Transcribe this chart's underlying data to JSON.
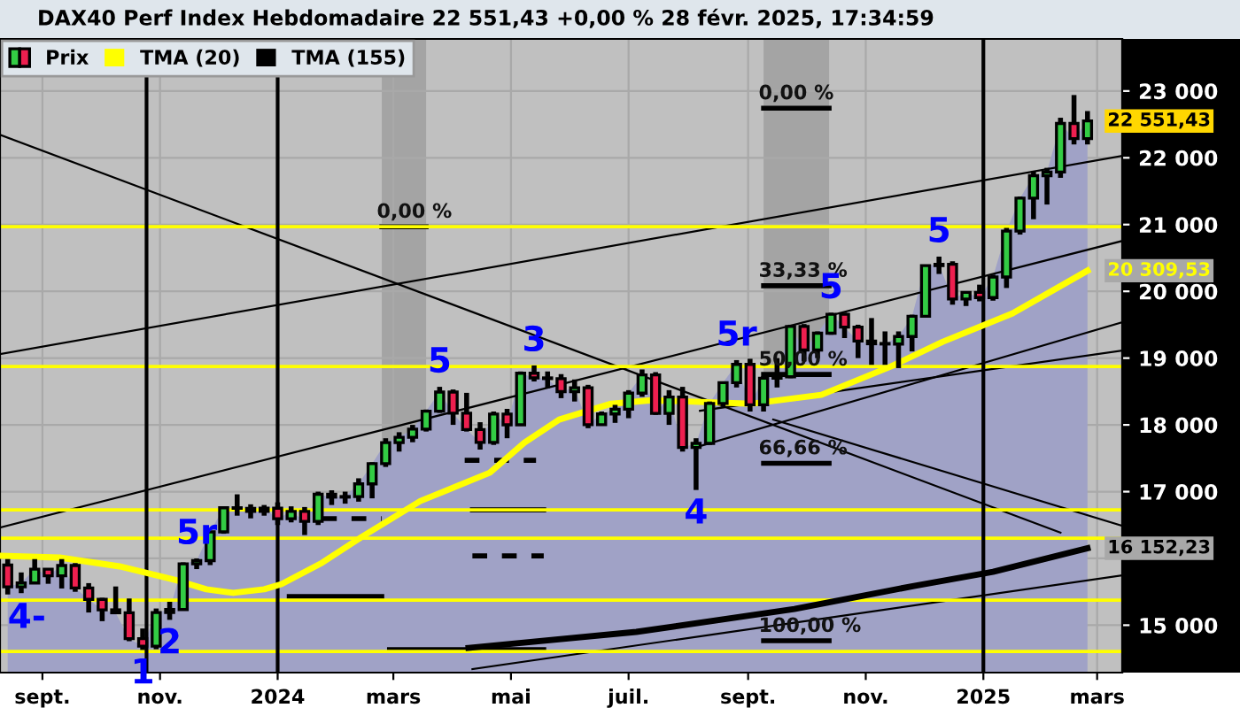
{
  "chart_data": {
    "type": "candlestick",
    "title": "DAX40 Perf Index Hebdomadaire 22 551,43 +0,00 % 28 févr. 2025, 17:34:59",
    "x": [
      "2023-08-14",
      "2023-08-21",
      "2023-08-28",
      "2023-09-04",
      "2023-09-11",
      "2023-09-18",
      "2023-09-25",
      "2023-10-02",
      "2023-10-09",
      "2023-10-16",
      "2023-10-23",
      "2023-10-30",
      "2023-11-06",
      "2023-11-13",
      "2023-11-20",
      "2023-11-27",
      "2023-12-04",
      "2023-12-11",
      "2023-12-18",
      "2023-12-25",
      "2024-01-01",
      "2024-01-08",
      "2024-01-15",
      "2024-01-22",
      "2024-01-29",
      "2024-02-05",
      "2024-02-12",
      "2024-02-19",
      "2024-02-26",
      "2024-03-04",
      "2024-03-11",
      "2024-03-18",
      "2024-03-25",
      "2024-04-01",
      "2024-04-08",
      "2024-04-15",
      "2024-04-22",
      "2024-04-29",
      "2024-05-06",
      "2024-05-13",
      "2024-05-20",
      "2024-05-27",
      "2024-06-03",
      "2024-06-10",
      "2024-06-17",
      "2024-06-24",
      "2024-07-01",
      "2024-07-08",
      "2024-07-15",
      "2024-07-22",
      "2024-07-29",
      "2024-08-05",
      "2024-08-12",
      "2024-08-19",
      "2024-08-26",
      "2024-09-02",
      "2024-09-09",
      "2024-09-16",
      "2024-09-23",
      "2024-09-30",
      "2024-10-07",
      "2024-10-14",
      "2024-10-21",
      "2024-10-28",
      "2024-11-04",
      "2024-11-11",
      "2024-11-18",
      "2024-11-25",
      "2024-12-02",
      "2024-12-09",
      "2024-12-16",
      "2024-12-23",
      "2024-12-30",
      "2025-01-06",
      "2025-01-13",
      "2025-01-20",
      "2025-01-27",
      "2025-02-03",
      "2025-02-10",
      "2025-02-17",
      "2025-02-24"
    ],
    "series": [
      {
        "type": "area",
        "color": "#a0a2c6",
        "values": [
          15575,
          15632,
          15840,
          15740,
          15894,
          15557,
          15387,
          15230,
          15186,
          14798,
          14687,
          15189,
          15234,
          15919,
          15967,
          16397,
          16759,
          16751,
          16706,
          16752,
          16594,
          16704,
          16555,
          16961,
          16918,
          16927,
          17117,
          17419,
          17735,
          17815,
          17936,
          18206,
          18492,
          18175,
          17930,
          17737,
          18161,
          18001,
          18773,
          18704,
          18693,
          18498,
          18557,
          18002,
          18164,
          18235,
          18475,
          18748,
          18171,
          18417,
          17661,
          17723,
          18322,
          18633,
          18906,
          18302,
          18699,
          18720,
          19474,
          19121,
          19373,
          19657,
          19464,
          19255,
          19215,
          19211,
          19323,
          19626,
          20385,
          20405,
          19885,
          19984,
          19906,
          20215,
          20903,
          21395,
          21732,
          21787,
          22514,
          22287,
          22551
        ]
      },
      {
        "type": "line",
        "color": "#000000",
        "x": [
          "2023-08-10",
          "2025-03-14"
        ],
        "values": [
          19060,
          22030
        ]
      },
      {
        "type": "line",
        "color": "#000000",
        "x": [
          "2023-08-10",
          "2025-02-10"
        ],
        "values": [
          22345,
          16385
        ]
      },
      {
        "type": "line",
        "color": "#000000",
        "x": [
          "2024-09-14",
          "2025-03-14"
        ],
        "values": [
          18079,
          16489
        ]
      },
      {
        "type": "line",
        "color": "#000000",
        "x": [
          "2023-08-10",
          "2025-03-14"
        ],
        "values": [
          16462,
          20755
        ]
      },
      {
        "type": "line",
        "color": "#000000",
        "x": [
          "2024-04-11",
          "2025-03-14"
        ],
        "values": [
          14342,
          15747
        ]
      },
      {
        "type": "line",
        "color": "#000000",
        "x": [
          "2024-08-07",
          "2025-03-14"
        ],
        "values": [
          17681,
          19536
        ]
      },
      {
        "type": "line",
        "color": "#000000",
        "x": [
          "2024-08-07",
          "2025-03-14"
        ],
        "values": [
          18211,
          19112
        ]
      },
      {
        "type": "line",
        "color": "#000000",
        "x": [
          "2024-02-24",
          "2024-03-18"
        ],
        "values": [
          20968,
          20968
        ]
      },
      {
        "type": "line",
        "color": "#000000",
        "x": [
          "2024-09-09",
          "2024-10-13"
        ],
        "values": [
          22743,
          22743
        ]
      },
      {
        "type": "line",
        "color": "#000000",
        "x": [
          "2024-09-09",
          "2024-10-13"
        ],
        "values": [
          20084,
          20084
        ]
      },
      {
        "type": "line",
        "color": "#000000",
        "x": [
          "2024-09-09",
          "2024-10-13"
        ],
        "values": [
          18755,
          18755
        ]
      },
      {
        "type": "line",
        "color": "#000000",
        "x": [
          "2024-09-09",
          "2024-10-13"
        ],
        "values": [
          17425,
          17425
        ]
      },
      {
        "type": "line",
        "color": "#000000",
        "x": [
          "2024-09-09",
          "2024-10-13"
        ],
        "values": [
          14766,
          14766
        ]
      },
      {
        "type": "line",
        "color": "#000000",
        "x": [
          "2024-01-07",
          "2024-02-24"
        ],
        "values": [
          15429,
          15429
        ]
      },
      {
        "type": "line",
        "color": "#000000",
        "x": [
          "2024-04-11",
          "2024-05-18"
        ],
        "values": [
          16727,
          16727
        ]
      },
      {
        "type": "line",
        "color": "#000000",
        "x": [
          "2024-02-28",
          "2024-05-18"
        ],
        "values": [
          14634,
          14634
        ]
      },
      {
        "type": "line",
        "color": "#000000",
        "line_style": "dashed",
        "x": [
          "2024-04-11",
          "2024-05-18"
        ],
        "values": [
          16038,
          16038
        ]
      },
      {
        "type": "line",
        "color": "#000000",
        "line_style": "dashed",
        "x": [
          "2024-04-07",
          "2024-05-14"
        ],
        "values": [
          17469,
          17469
        ]
      },
      {
        "type": "line",
        "color": "#000000",
        "line_style": "dashed",
        "x": [
          "2024-01-24",
          "2024-02-24"
        ],
        "values": [
          16595,
          16595
        ]
      },
      {
        "name": "Prix",
        "value_labels": [
          null,
          null,
          null,
          null,
          null,
          null,
          null,
          null,
          null,
          null,
          null,
          null,
          null,
          null,
          null,
          null,
          null,
          null,
          null,
          null,
          null,
          null,
          null,
          null,
          null,
          null,
          null,
          null,
          null,
          null,
          null,
          null,
          null,
          null,
          null,
          null,
          null,
          null,
          null,
          null,
          null,
          null,
          null,
          null,
          null,
          null,
          null,
          null,
          null,
          null,
          null,
          null,
          null,
          null,
          null,
          null,
          null,
          null,
          null,
          null,
          null,
          null,
          null,
          null,
          null,
          null,
          null,
          null,
          null,
          null,
          null,
          null,
          null,
          null,
          null,
          null,
          null,
          null,
          null,
          null,
          "22 551,43"
        ],
        "colors": [
          "#ee1f4f",
          "#33cc44",
          "#33cc44",
          "#ee1f4f",
          "#33cc44",
          "#ee1f4f",
          "#ee1f4f",
          "#ee1f4f",
          "#ee1f4f",
          "#ee1f4f",
          "#ee1f4f",
          "#33cc44",
          "#33cc44",
          "#33cc44",
          "#33cc44",
          "#33cc44",
          "#33cc44",
          "#ee1f4f",
          "#ee1f4f",
          "#33cc44",
          "#ee1f4f",
          "#33cc44",
          "#ee1f4f",
          "#33cc44",
          "#ee1f4f",
          "#33cc44",
          "#33cc44",
          "#33cc44",
          "#33cc44",
          "#33cc44",
          "#33cc44",
          "#33cc44",
          "#33cc44",
          "#ee1f4f",
          "#ee1f4f",
          "#ee1f4f",
          "#33cc44",
          "#ee1f4f",
          "#33cc44",
          "#ee1f4f",
          "#ee1f4f",
          "#ee1f4f",
          "#33cc44",
          "#ee1f4f",
          "#33cc44",
          "#33cc44",
          "#33cc44",
          "#33cc44",
          "#ee1f4f",
          "#33cc44",
          "#ee1f4f",
          "#33cc44",
          "#33cc44",
          "#33cc44",
          "#33cc44",
          "#ee1f4f",
          "#33cc44",
          "#33cc44",
          "#33cc44",
          "#ee1f4f",
          "#33cc44",
          "#33cc44",
          "#ee1f4f",
          "#ee1f4f",
          "#ee1f4f",
          "#ee1f4f",
          "#33cc44",
          "#33cc44",
          "#33cc44",
          "#33cc44",
          "#ee1f4f",
          "#33cc44",
          "#ee1f4f",
          "#33cc44",
          "#33cc44",
          "#33cc44",
          "#33cc44",
          "#33cc44",
          "#33cc44",
          "#ee1f4f",
          "#33cc44"
        ],
        "ohlc": [
          [
            15900,
            15990,
            15460,
            15575
          ],
          [
            15575,
            15790,
            15480,
            15632
          ],
          [
            15632,
            15990,
            15620,
            15840
          ],
          [
            15840,
            15850,
            15620,
            15740
          ],
          [
            15740,
            15990,
            15550,
            15894
          ],
          [
            15894,
            15930,
            15500,
            15557
          ],
          [
            15557,
            15630,
            15190,
            15387
          ],
          [
            15387,
            15410,
            15060,
            15230
          ],
          [
            15230,
            15580,
            15180,
            15186
          ],
          [
            15186,
            15400,
            14760,
            14798
          ],
          [
            14798,
            14950,
            14630,
            14687
          ],
          [
            14687,
            15250,
            14640,
            15189
          ],
          [
            15189,
            15350,
            15080,
            15234
          ],
          [
            15234,
            15940,
            15230,
            15919
          ],
          [
            15919,
            16000,
            15840,
            15967
          ],
          [
            15967,
            16410,
            15900,
            16397
          ],
          [
            16397,
            16770,
            16370,
            16759
          ],
          [
            16759,
            16960,
            16640,
            16751
          ],
          [
            16751,
            16810,
            16600,
            16706
          ],
          [
            16706,
            16800,
            16640,
            16752
          ],
          [
            16752,
            16840,
            16500,
            16594
          ],
          [
            16594,
            16780,
            16540,
            16704
          ],
          [
            16704,
            16770,
            16350,
            16555
          ],
          [
            16555,
            17000,
            16500,
            16961
          ],
          [
            16961,
            17020,
            16800,
            16918
          ],
          [
            16918,
            17000,
            16820,
            16927
          ],
          [
            16927,
            17200,
            16850,
            17117
          ],
          [
            17117,
            17440,
            16900,
            17419
          ],
          [
            17419,
            17800,
            17370,
            17735
          ],
          [
            17735,
            17890,
            17600,
            17815
          ],
          [
            17815,
            18000,
            17740,
            17936
          ],
          [
            17936,
            18230,
            17900,
            18206
          ],
          [
            18206,
            18570,
            18180,
            18492
          ],
          [
            18492,
            18530,
            18000,
            18175
          ],
          [
            18175,
            18480,
            17900,
            17930
          ],
          [
            17930,
            18040,
            17630,
            17737
          ],
          [
            17737,
            18200,
            17700,
            18161
          ],
          [
            18161,
            18240,
            17800,
            18001
          ],
          [
            18001,
            18800,
            17990,
            18773
          ],
          [
            18773,
            18890,
            18650,
            18704
          ],
          [
            18704,
            18800,
            18550,
            18693
          ],
          [
            18693,
            18760,
            18400,
            18498
          ],
          [
            18498,
            18680,
            18350,
            18557
          ],
          [
            18557,
            18600,
            17950,
            18002
          ],
          [
            18002,
            18200,
            17990,
            18164
          ],
          [
            18164,
            18300,
            18030,
            18235
          ],
          [
            18235,
            18520,
            18100,
            18475
          ],
          [
            18475,
            18830,
            18420,
            18748
          ],
          [
            18748,
            18790,
            18150,
            18171
          ],
          [
            18171,
            18520,
            18000,
            18417
          ],
          [
            18417,
            18570,
            17600,
            17661
          ],
          [
            17661,
            17800,
            17025,
            17723
          ],
          [
            17723,
            18350,
            17700,
            18322
          ],
          [
            18322,
            18640,
            18270,
            18633
          ],
          [
            18633,
            18970,
            18560,
            18906
          ],
          [
            18906,
            18990,
            18200,
            18302
          ],
          [
            18302,
            18730,
            18200,
            18699
          ],
          [
            18699,
            19000,
            18560,
            18720
          ],
          [
            18720,
            19500,
            18700,
            19474
          ],
          [
            19474,
            19510,
            18950,
            19121
          ],
          [
            19121,
            19400,
            19000,
            19373
          ],
          [
            19373,
            19680,
            19350,
            19657
          ],
          [
            19657,
            19680,
            19300,
            19464
          ],
          [
            19464,
            19500,
            19000,
            19255
          ],
          [
            19255,
            19600,
            18900,
            19215
          ],
          [
            19215,
            19400,
            18900,
            19211
          ],
          [
            19211,
            19400,
            18850,
            19323
          ],
          [
            19323,
            19650,
            19100,
            19626
          ],
          [
            19626,
            20400,
            19620,
            20385
          ],
          [
            20385,
            20520,
            20260,
            20405
          ],
          [
            20405,
            20450,
            19800,
            19885
          ],
          [
            19885,
            19990,
            19780,
            19984
          ],
          [
            19984,
            20100,
            19850,
            19906
          ],
          [
            19906,
            20250,
            19860,
            20215
          ],
          [
            20215,
            20950,
            20050,
            20903
          ],
          [
            20903,
            21420,
            20850,
            21395
          ],
          [
            21395,
            21800,
            21080,
            21732
          ],
          [
            21732,
            21850,
            21300,
            21787
          ],
          [
            21787,
            22600,
            21700,
            22514
          ],
          [
            22514,
            22940,
            22200,
            22287
          ],
          [
            22287,
            22700,
            22200,
            22551.43
          ]
        ]
      },
      {
        "name": "TMA (20)",
        "type": "line",
        "color": "#ffff00",
        "x": [
          "2023-08-10",
          "2023-09-10",
          "2023-10-11",
          "2023-11-10",
          "2023-11-25",
          "2023-12-09",
          "2023-12-25",
          "2024-01-03",
          "2024-01-24",
          "2024-02-14",
          "2024-03-15",
          "2024-04-20",
          "2024-05-08",
          "2024-05-26",
          "2024-06-22",
          "2024-07-13",
          "2024-08-07",
          "2024-09-03",
          "2024-10-09",
          "2024-11-14",
          "2024-12-11",
          "2025-01-16",
          "2025-02-24"
        ],
        "values": [
          16040,
          16013,
          15881,
          15669,
          15537,
          15484,
          15537,
          15616,
          15934,
          16330,
          16860,
          17284,
          17734,
          18079,
          18317,
          18370,
          18344,
          18317,
          18450,
          18874,
          19245,
          19669,
          20309.53
        ],
        "value_labels": [
          null,
          null,
          null,
          null,
          null,
          null,
          null,
          null,
          null,
          null,
          null,
          null,
          null,
          null,
          null,
          null,
          null,
          null,
          null,
          null,
          null,
          null,
          "20 309,53"
        ]
      },
      {
        "name": "TMA (155)",
        "type": "line",
        "color": "#000000",
        "x": [
          "2024-04-09",
          "2024-07-05",
          "2024-09-25",
          "2024-11-26",
          "2025-01-06",
          "2025-02-24"
        ],
        "values": [
          14660,
          14899,
          15243,
          15588,
          15800,
          16152.23
        ],
        "value_labels": [
          null,
          null,
          null,
          null,
          null,
          "16 152,23"
        ]
      }
    ],
    "annotations": [
      {
        "text": "0,00 %",
        "x": "2024-02-24",
        "y": 20968
      },
      {
        "text": "0,00 %",
        "x": "2024-09-09",
        "y": 22743
      },
      {
        "text": "33,33 %",
        "x": "2024-09-09",
        "y": 20084
      },
      {
        "text": "50,00 %",
        "x": "2024-09-09",
        "y": 18755
      },
      {
        "text": "66,66 %",
        "x": "2024-09-09",
        "y": 17425
      },
      {
        "text": "100,00 %",
        "x": "2024-09-09",
        "y": 14766
      },
      {
        "text": "4-",
        "x": "2023-08-14",
        "y": 15460
      },
      {
        "text": "1",
        "x": "2023-10-23",
        "y": 14630
      },
      {
        "text": "2",
        "x": "2023-11-06",
        "y": 15080
      },
      {
        "text": "5r",
        "x": "2023-11-20",
        "y": 16000
      },
      {
        "text": "5",
        "x": "2024-03-25",
        "y": 18570
      },
      {
        "text": "3",
        "x": "2024-05-13",
        "y": 18890
      },
      {
        "text": "5r",
        "x": "2024-08-26",
        "y": 18970
      },
      {
        "text": "4",
        "x": "2024-08-05",
        "y": 17025
      },
      {
        "text": "5",
        "x": "2024-10-14",
        "y": 19680
      },
      {
        "text": "5",
        "x": "2024-12-09",
        "y": 20520
      }
    ],
    "xlim": [
      "2023-08-10",
      "2025-03-14"
    ],
    "xticks": [
      {
        "value": "2023-09-01",
        "label": "sept."
      },
      {
        "value": "2023-11-01",
        "label": "nov."
      },
      {
        "value": "2024-01-01",
        "label": "2024"
      },
      {
        "value": "2024-03-01",
        "label": "mars"
      },
      {
        "value": "2024-05-01",
        "label": "mai"
      },
      {
        "value": "2024-07-01",
        "label": "juil."
      },
      {
        "value": "2024-09-01",
        "label": "sept."
      },
      {
        "value": "2024-11-01",
        "label": "nov."
      },
      {
        "value": "2025-01-01",
        "label": "2025"
      },
      {
        "value": "2025-03-01",
        "label": "mars"
      }
    ],
    "ylim": [
      14290,
      23780
    ],
    "yticks": [
      {
        "value": 15000,
        "label": "15 000"
      },
      {
        "value": 16000,
        "label": null
      },
      {
        "value": 17000,
        "label": "17 000"
      },
      {
        "value": 18000,
        "label": "18 000"
      },
      {
        "value": 19000,
        "label": "19 000"
      },
      {
        "value": 20000,
        "label": "20 000"
      },
      {
        "value": 21000,
        "label": "21 000"
      },
      {
        "value": 22000,
        "label": "22 000"
      },
      {
        "value": 23000,
        "label": "23 000"
      }
    ],
    "grid": true,
    "legend": "top left",
    "bands": [
      {
        "axis": "x",
        "from": "2024-02-24",
        "to": "2024-03-18",
        "color": "#a4a4a4"
      },
      {
        "axis": "x",
        "from": "2024-09-09",
        "to": "2024-10-13",
        "color": "#a4a4a4"
      }
    ],
    "ref_lines": [
      {
        "axis": "y",
        "value": 20968,
        "color": "#ffff00"
      },
      {
        "axis": "y",
        "value": 18874,
        "color": "#ffff00"
      },
      {
        "axis": "y",
        "value": 16727,
        "color": "#ffff00"
      },
      {
        "axis": "y",
        "value": 16303,
        "color": "#ffff00"
      },
      {
        "axis": "y",
        "value": 15375,
        "color": "#ffff00"
      },
      {
        "axis": "y",
        "value": 14607,
        "color": "#ffff00"
      },
      {
        "axis": "x",
        "value": "2023-10-25",
        "color": "#000000"
      },
      {
        "axis": "x",
        "value": "2024-01-01",
        "color": "#000000"
      },
      {
        "axis": "x",
        "value": "2025-01-01",
        "color": "#000000"
      }
    ]
  }
}
